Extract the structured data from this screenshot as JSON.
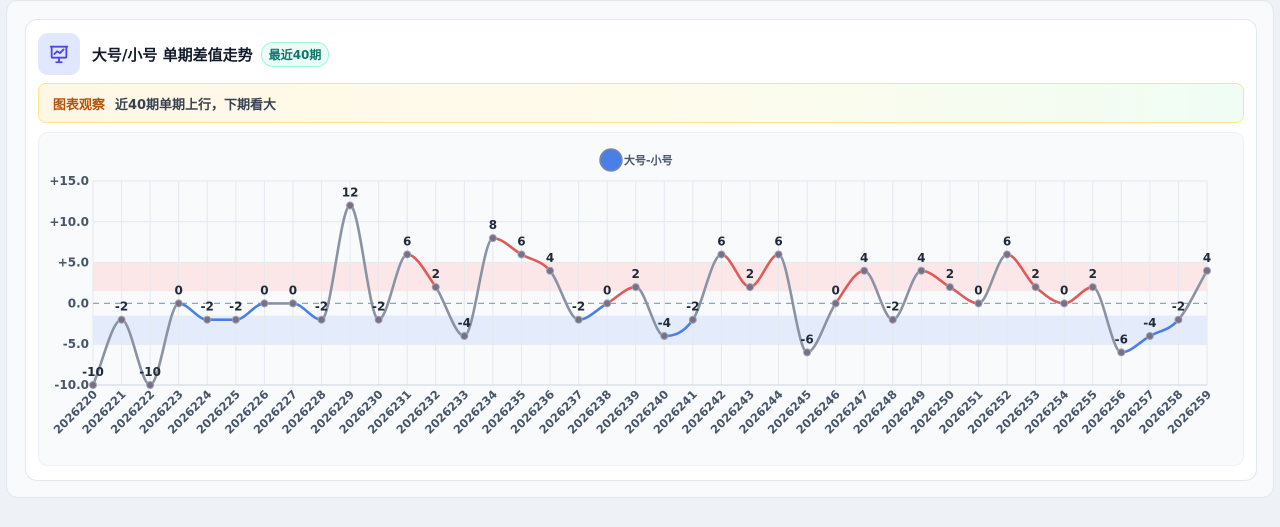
{
  "header": {
    "title": "大号/小号 单期差值走势",
    "badge": "最近40期",
    "icon": "chart-presentation-icon",
    "icon_color": "#4f46e5"
  },
  "note": {
    "label": "图表观察",
    "text": "近40期单期上行，下期看大"
  },
  "chart_data": {
    "type": "line",
    "title": "",
    "xlabel": "",
    "ylabel": "",
    "legend": {
      "label": "大号-小号",
      "color": "#4a7fe8",
      "placement": "top-center"
    },
    "ylim": [
      -10,
      15
    ],
    "yticks": [
      {
        "v": 15,
        "label": "+15.0"
      },
      {
        "v": 10,
        "label": "+10.0"
      },
      {
        "v": 5,
        "label": "+5.0"
      },
      {
        "v": 0,
        "label": "0.0"
      },
      {
        "v": -5,
        "label": "-5.0"
      },
      {
        "v": -10,
        "label": "-10.0"
      }
    ],
    "bands": [
      {
        "from": 1.5,
        "to": 5,
        "color": "#fde2e2"
      },
      {
        "from": -5,
        "to": -1.5,
        "color": "#dfe8fb"
      }
    ],
    "zero_line": "dashed",
    "grid": true,
    "colors": {
      "up": "#e05a5a",
      "down": "#4a7fe8",
      "neutral": "#8a93a3"
    },
    "x": [
      "2026220",
      "2026221",
      "2026222",
      "2026223",
      "2026224",
      "2026225",
      "2026226",
      "2026227",
      "2026228",
      "2026229",
      "2026230",
      "2026231",
      "2026232",
      "2026233",
      "2026234",
      "2026235",
      "2026236",
      "2026237",
      "2026238",
      "2026239",
      "2026240",
      "2026241",
      "2026242",
      "2026243",
      "2026244",
      "2026245",
      "2026246",
      "2026247",
      "2026248",
      "2026249",
      "2026250",
      "2026251",
      "2026252",
      "2026253",
      "2026254",
      "2026255",
      "2026256",
      "2026257",
      "2026258",
      "2026259"
    ],
    "series": [
      {
        "name": "大号-小号",
        "values": [
          -10,
          -2,
          -10,
          0,
          -2,
          -2,
          0,
          0,
          -2,
          12,
          -2,
          6,
          2,
          -4,
          8,
          6,
          4,
          -2,
          0,
          2,
          -4,
          -2,
          6,
          2,
          6,
          -6,
          0,
          4,
          -2,
          4,
          2,
          0,
          6,
          2,
          0,
          2,
          -6,
          -4,
          -2,
          4
        ]
      }
    ]
  }
}
